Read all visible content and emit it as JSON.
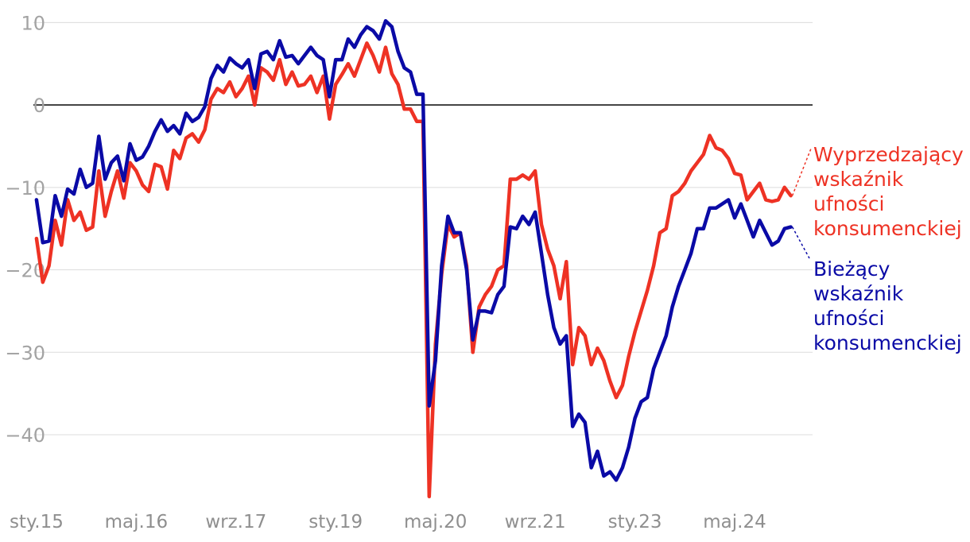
{
  "chart_data": {
    "type": "line",
    "x_ticks": [
      {
        "label": "sty.15",
        "index": 0
      },
      {
        "label": "maj.16",
        "index": 16
      },
      {
        "label": "wrz.17",
        "index": 32
      },
      {
        "label": "sty.19",
        "index": 48
      },
      {
        "label": "maj.20",
        "index": 64
      },
      {
        "label": "wrz.21",
        "index": 80
      },
      {
        "label": "sty.23",
        "index": 96
      },
      {
        "label": "maj.24",
        "index": 112
      }
    ],
    "yticks": [
      10,
      0,
      -10,
      -20,
      -30,
      -40
    ],
    "ylim": [
      -48,
      11
    ],
    "xlim": [
      -0.5,
      124.5
    ],
    "grid": true,
    "series": [
      {
        "name": "Wyprzedzający wskaźnik ufności konsumenckiej",
        "color": "#ee3224",
        "values": [
          -16.2,
          -21.5,
          -19.5,
          -14.0,
          -17.0,
          -11.5,
          -14.0,
          -13.0,
          -15.2,
          -14.8,
          -8.0,
          -13.5,
          -10.5,
          -8.0,
          -11.3,
          -7.0,
          -8.0,
          -9.7,
          -10.5,
          -7.2,
          -7.5,
          -10.2,
          -5.5,
          -6.5,
          -4.0,
          -3.5,
          -4.5,
          -3.0,
          0.7,
          2.0,
          1.5,
          2.8,
          1.0,
          2.0,
          3.5,
          0.0,
          4.5,
          4.0,
          3.0,
          5.5,
          2.5,
          4.0,
          2.3,
          2.5,
          3.5,
          1.5,
          3.5,
          -1.7,
          2.5,
          3.7,
          5.0,
          3.5,
          5.5,
          7.5,
          6.0,
          4.0,
          7.0,
          3.8,
          2.5,
          -0.5,
          -0.5,
          -2.0,
          -2.0,
          -47.5,
          -29.0,
          -20.5,
          -14.5,
          -16.0,
          -15.5,
          -19.5,
          -30.0,
          -24.5,
          -23.0,
          -22.0,
          -20.0,
          -19.5,
          -9.0,
          -9.0,
          -8.5,
          -9.0,
          -8.0,
          -14.5,
          -17.5,
          -19.5,
          -23.5,
          -19.0,
          -31.5,
          -27.0,
          -28.0,
          -31.5,
          -29.5,
          -31.0,
          -33.5,
          -35.5,
          -34.0,
          -30.5,
          -27.5,
          -25.0,
          -22.5,
          -19.5,
          -15.5,
          -15.0,
          -11.0,
          -10.5,
          -9.5,
          -8.0,
          -7.0,
          -6.0,
          -3.7,
          -5.2,
          -5.5,
          -6.5,
          -8.3,
          -8.5,
          -11.5,
          -10.5,
          -9.5,
          -11.5,
          -11.7,
          -11.5,
          -10.0,
          -11.0
        ],
        "label_lines": [
          "Wyprzedzający",
          "wskaźnik",
          "ufności",
          "konsumenckiej"
        ]
      },
      {
        "name": "Bieżący wskaźnik ufności konsumenckiej",
        "color": "#0a0aa6",
        "values": [
          -11.5,
          -16.7,
          -16.5,
          -11.0,
          -13.5,
          -10.2,
          -10.8,
          -7.8,
          -10.0,
          -9.5,
          -3.8,
          -9.0,
          -7.0,
          -6.2,
          -9.2,
          -4.7,
          -6.7,
          -6.3,
          -5.0,
          -3.2,
          -1.8,
          -3.2,
          -2.5,
          -3.5,
          -1.0,
          -2.0,
          -1.5,
          -0.2,
          3.2,
          4.8,
          4.0,
          5.7,
          5.0,
          4.5,
          5.5,
          2.0,
          6.2,
          6.5,
          5.5,
          7.8,
          5.8,
          6.0,
          5.0,
          6.0,
          7.0,
          6.0,
          5.5,
          1.0,
          5.5,
          5.5,
          8.0,
          7.0,
          8.5,
          9.5,
          9.0,
          8.0,
          10.2,
          9.5,
          6.5,
          4.5,
          4.0,
          1.3,
          1.3,
          -36.5,
          -31.0,
          -19.5,
          -13.5,
          -15.5,
          -15.5,
          -20.0,
          -28.5,
          -25.0,
          -25.0,
          -25.2,
          -23.0,
          -22.0,
          -14.8,
          -15.0,
          -13.5,
          -14.5,
          -13.0,
          -18.0,
          -23.0,
          -27.0,
          -29.0,
          -28.0,
          -39.0,
          -37.5,
          -38.5,
          -44.0,
          -42.0,
          -45.0,
          -44.5,
          -45.5,
          -44.0,
          -41.5,
          -38.0,
          -36.0,
          -35.5,
          -32.0,
          -30.0,
          -28.0,
          -24.5,
          -22.0,
          -20.0,
          -18.0,
          -15.0,
          -15.0,
          -12.5,
          -12.5,
          -12.0,
          -11.5,
          -13.7,
          -12.0,
          -14.0,
          -16.0,
          -14.0,
          -15.5,
          -17.0,
          -16.5,
          -15.0,
          -14.8
        ],
        "label_lines": [
          "Bieżący",
          "wskaźnik",
          "ufności",
          "konsumenckiej"
        ]
      }
    ]
  }
}
